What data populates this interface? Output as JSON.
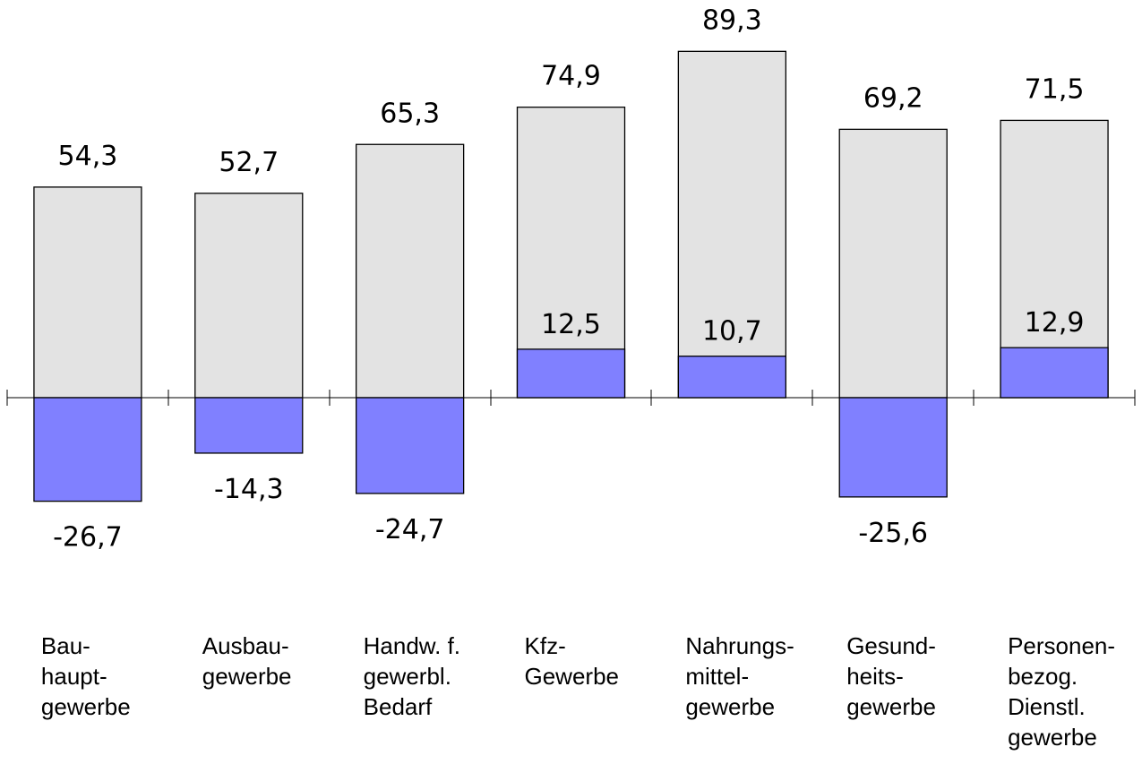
{
  "chart_data": {
    "type": "bar",
    "title": "",
    "xlabel": "",
    "ylabel": "",
    "categories": [
      [
        "Bau-",
        "haupt-",
        "gewerbe"
      ],
      [
        "Ausbau-",
        "gewerbe"
      ],
      [
        "Handw. f.",
        "gewerbl.",
        "Bedarf"
      ],
      [
        "Kfz-",
        "Gewerbe"
      ],
      [
        "Nahrungs-",
        "mittel-",
        "gewerbe"
      ],
      [
        "Gesund-",
        "heits-",
        "gewerbe"
      ],
      [
        "Personen-",
        "bezog.",
        "Dienstl.",
        "gewerbe"
      ]
    ],
    "series": [
      {
        "values": [
          54.3,
          52.7,
          65.3,
          74.9,
          89.3,
          69.2,
          71.5
        ],
        "labels": [
          "54,3",
          "52,7",
          "65,3",
          "74,9",
          "89,3",
          "69,2",
          "71,5"
        ],
        "color": "#e3e3e3"
      },
      {
        "values": [
          -26.7,
          -14.3,
          -24.7,
          12.5,
          10.7,
          -25.6,
          12.9
        ],
        "labels": [
          "-26,7",
          "-14,3",
          "-24,7",
          "12,5",
          "10,7",
          "-25,6",
          "12,9"
        ],
        "color": "#8080ff"
      }
    ],
    "ylim": [
      -30,
      92
    ],
    "grid": false,
    "legend": "none"
  }
}
